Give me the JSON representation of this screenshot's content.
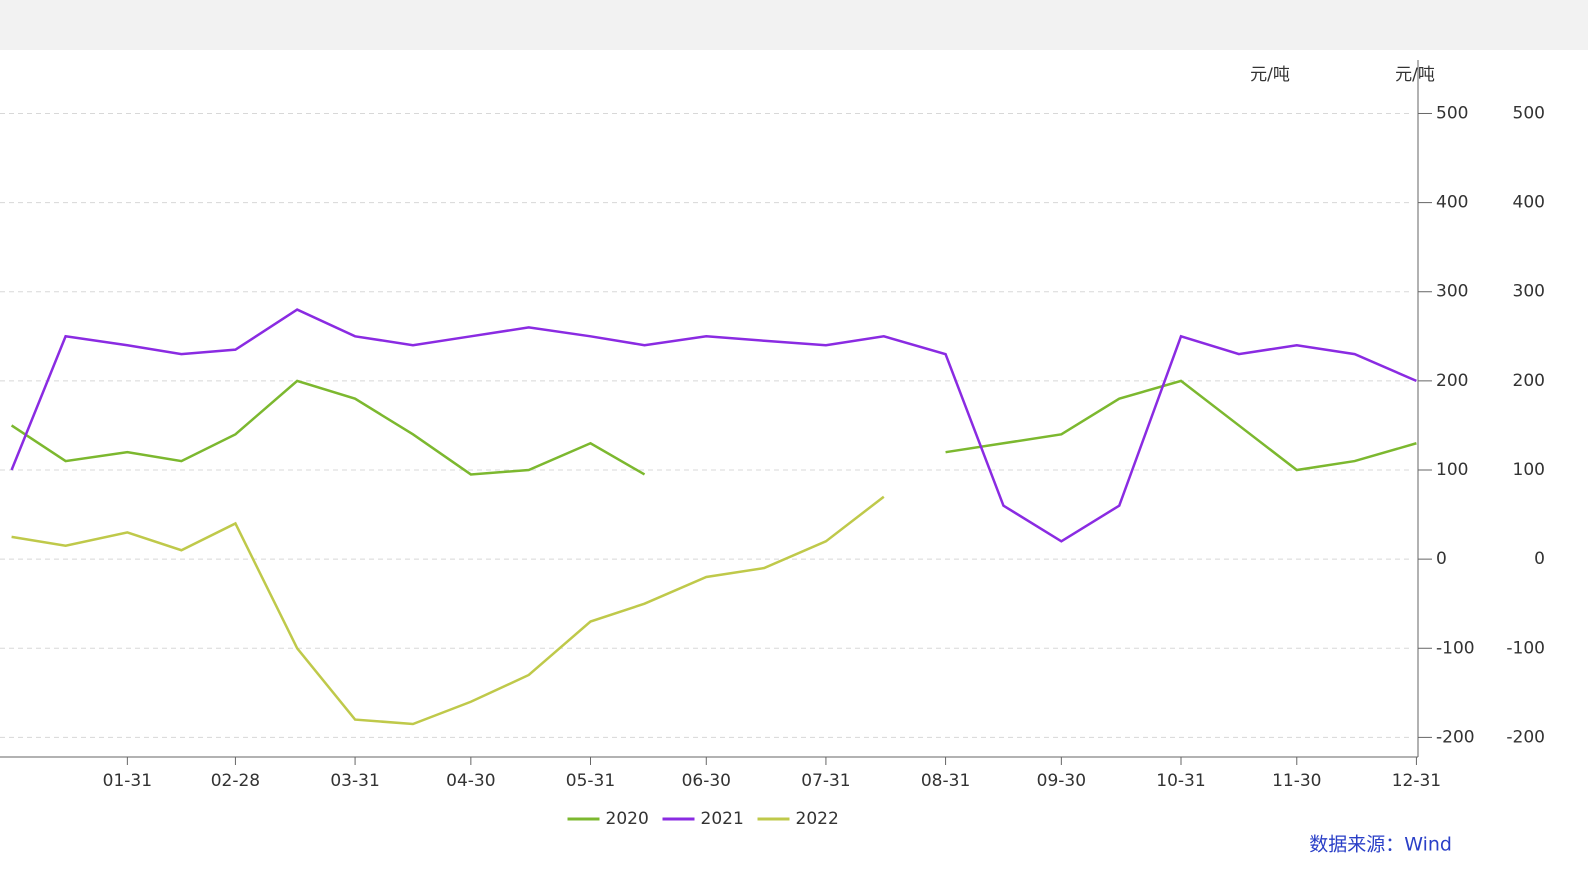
{
  "chart_data": {
    "type": "line",
    "y_label": "元/吨",
    "source": "数据来源：Wind",
    "x": [
      1,
      15,
      31,
      45,
      59,
      75,
      90,
      105,
      120,
      135,
      151,
      165,
      181,
      196,
      212,
      227,
      243,
      258,
      273,
      288,
      304,
      319,
      334,
      349,
      365
    ],
    "xlim": [
      -2,
      368
    ],
    "xticks": [
      {
        "value": 31,
        "label": "01-31"
      },
      {
        "value": 59,
        "label": "02-28"
      },
      {
        "value": 90,
        "label": "03-31"
      },
      {
        "value": 120,
        "label": "04-30"
      },
      {
        "value": 151,
        "label": "05-31"
      },
      {
        "value": 181,
        "label": "06-30"
      },
      {
        "value": 212,
        "label": "07-31"
      },
      {
        "value": 243,
        "label": "08-31"
      },
      {
        "value": 273,
        "label": "09-30"
      },
      {
        "value": 304,
        "label": "10-31"
      },
      {
        "value": 334,
        "label": "11-30"
      },
      {
        "value": 365,
        "label": "12-31"
      }
    ],
    "ylim": [
      -222,
      560
    ],
    "yticks": [
      -200,
      -100,
      0,
      100,
      200,
      300,
      400,
      500
    ],
    "grid": true,
    "legend": "bottom",
    "series": [
      {
        "name": "2020",
        "color": "#7cb82f",
        "values": [
          150,
          110,
          120,
          110,
          140,
          200,
          180,
          140,
          95,
          100,
          130,
          95,
          null,
          null,
          null,
          null,
          120,
          130,
          140,
          180,
          200,
          150,
          100,
          110,
          130
        ]
      },
      {
        "name": "2021",
        "color": "#8a2be2",
        "values": [
          100,
          250,
          240,
          230,
          235,
          280,
          250,
          240,
          250,
          260,
          250,
          240,
          250,
          245,
          240,
          250,
          230,
          60,
          20,
          60,
          250,
          230,
          240,
          230,
          200
        ]
      },
      {
        "name": "2022",
        "color": "#bfc94a",
        "values": [
          25,
          15,
          30,
          10,
          40,
          -100,
          -180,
          -185,
          -160,
          -130,
          -70,
          -50,
          -20,
          -10,
          20,
          70,
          null,
          null,
          null,
          null,
          null,
          null,
          null,
          null,
          null
        ]
      }
    ]
  }
}
